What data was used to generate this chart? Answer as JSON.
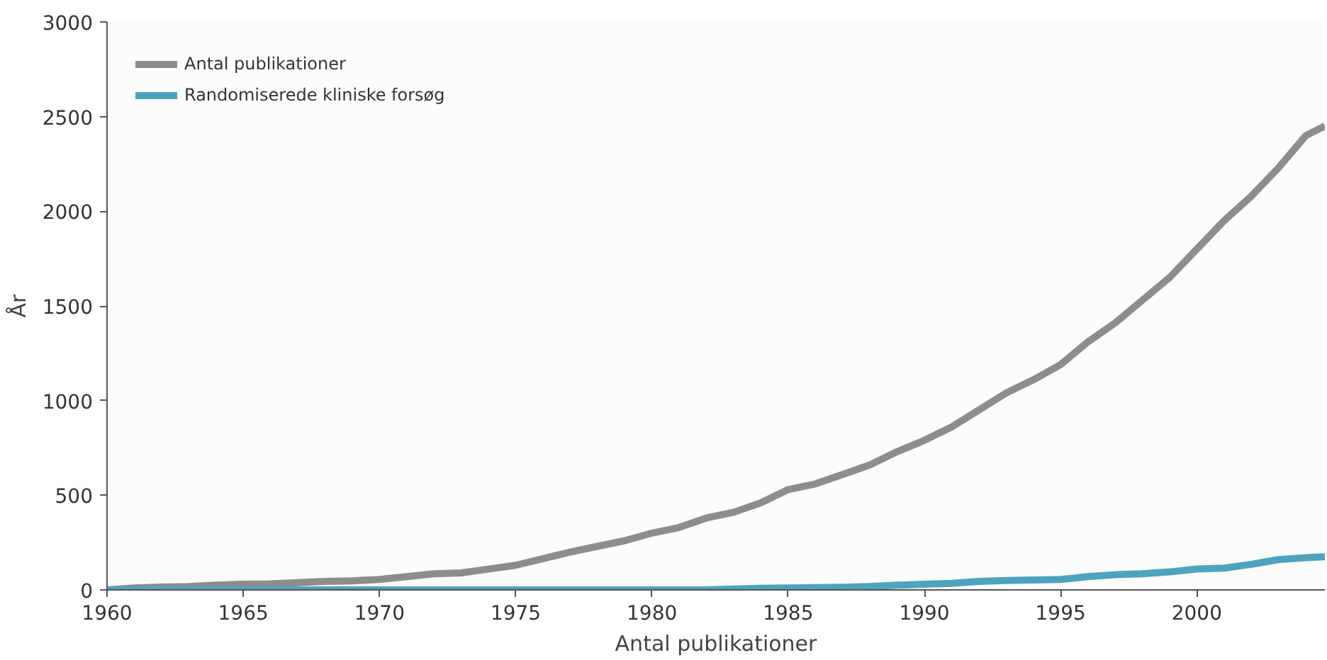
{
  "chart_data": {
    "type": "line",
    "xlabel": "Antal publikationer",
    "ylabel": "År",
    "xlim": [
      1960,
      2004.7
    ],
    "xticks": [
      1960,
      1965,
      1970,
      1975,
      1980,
      1985,
      1990,
      1995,
      2000
    ],
    "ylim": [
      0,
      3000
    ],
    "yticks": [
      0,
      500,
      1000,
      1500,
      2000,
      2500,
      3000
    ],
    "grid": false,
    "legend": "top left",
    "marker": "none",
    "line_style": "solid",
    "x": [
      1960,
      1961,
      1962,
      1963,
      1964,
      1965,
      1966,
      1967,
      1968,
      1969,
      1970,
      1971,
      1972,
      1973,
      1974,
      1975,
      1976,
      1977,
      1978,
      1979,
      1980,
      1981,
      1982,
      1983,
      1984,
      1985,
      1986,
      1987,
      1988,
      1989,
      1990,
      1991,
      1992,
      1993,
      1994,
      1995,
      1996,
      1997,
      1998,
      1999,
      2000,
      2001,
      2002,
      2003,
      2004,
      2004.7
    ],
    "series": [
      {
        "name": "Antal publikationer",
        "color": "#8e8c8d",
        "values": [
          0,
          10,
          15,
          18,
          25,
          30,
          32,
          38,
          45,
          48,
          55,
          70,
          85,
          90,
          110,
          130,
          165,
          200,
          230,
          260,
          300,
          330,
          380,
          410,
          460,
          530,
          560,
          610,
          660,
          730,
          790,
          860,
          950,
          1040,
          1110,
          1190,
          1310,
          1410,
          1530,
          1650,
          1800,
          1950,
          2080,
          2230,
          2400,
          2450
        ]
      },
      {
        "name": "Randomiserede kliniske forsøg",
        "color": "#4fa3bd",
        "values": [
          0,
          0,
          0,
          0,
          0,
          0,
          0,
          0,
          0,
          0,
          0,
          0,
          0,
          0,
          0,
          0,
          0,
          0,
          0,
          0,
          0,
          0,
          0,
          5,
          8,
          10,
          12,
          14,
          18,
          25,
          30,
          35,
          45,
          50,
          52,
          55,
          70,
          80,
          85,
          95,
          110,
          115,
          135,
          160,
          170,
          175
        ]
      }
    ]
  }
}
